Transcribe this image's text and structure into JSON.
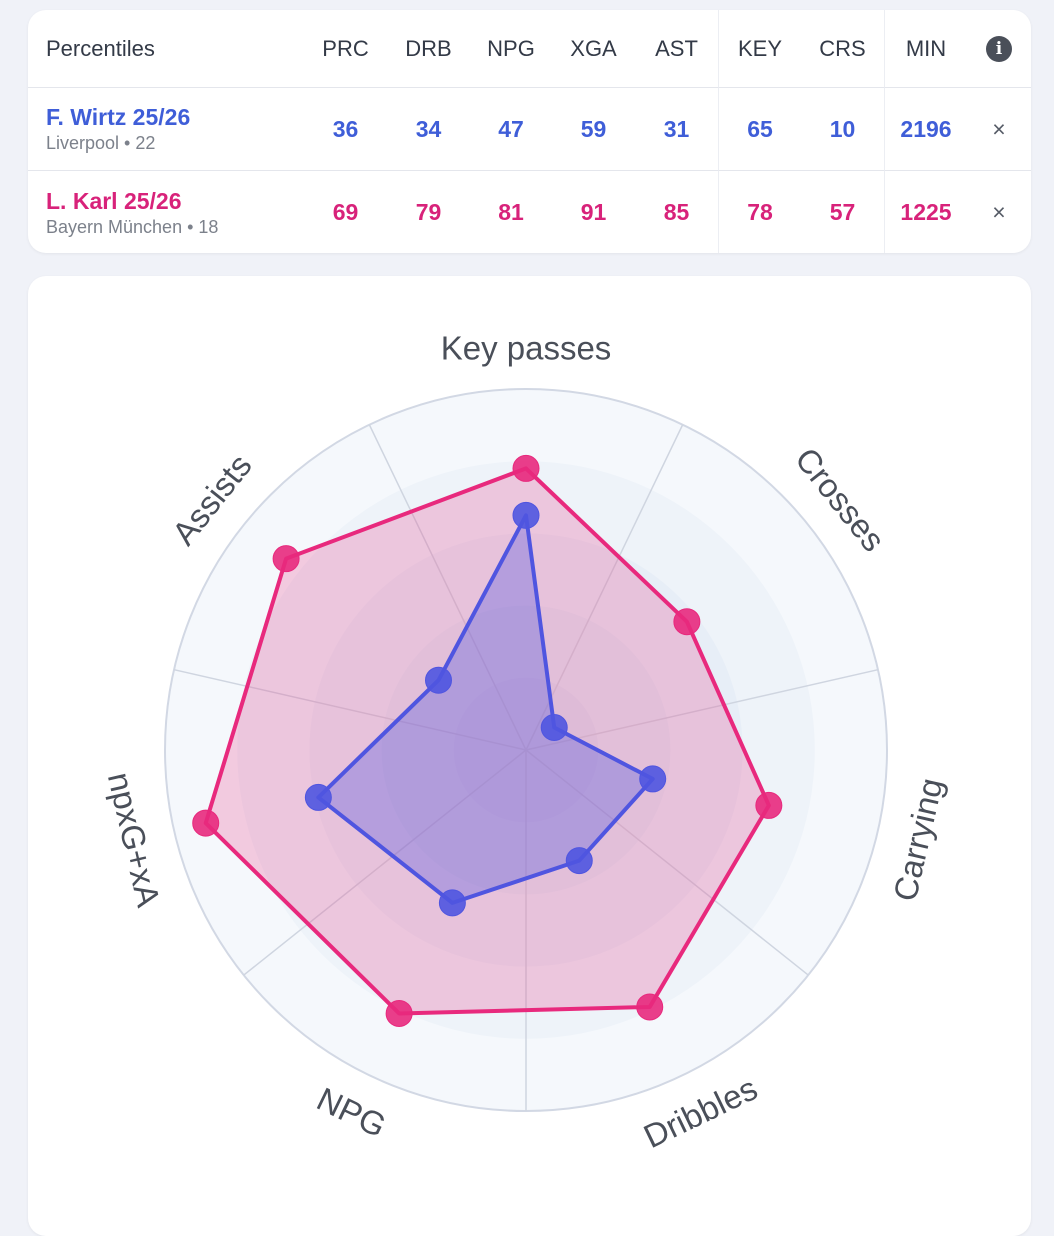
{
  "table": {
    "header": [
      "Percentiles",
      "PRC",
      "DRB",
      "NPG",
      "XGA",
      "AST",
      "KEY",
      "CRS",
      "MIN"
    ],
    "info_icon": "info-icon",
    "players": [
      {
        "name": "F. Wirtz 25/26",
        "sub": "Liverpool • 22",
        "color": "#3f5ed8",
        "values": [
          "36",
          "34",
          "47",
          "59",
          "31",
          "65",
          "10",
          "2196"
        ],
        "close": "×"
      },
      {
        "name": "L. Karl 25/26",
        "sub": "Bayern München • 18",
        "color": "#d8227a",
        "values": [
          "69",
          "79",
          "81",
          "91",
          "85",
          "78",
          "57",
          "1225"
        ],
        "close": "×"
      }
    ]
  },
  "chart_data": {
    "type": "radar",
    "axes": [
      "Key passes",
      "Crosses",
      "Carrying",
      "Dribbles",
      "NPG",
      "npxG+xA",
      "Assists"
    ],
    "range": [
      0,
      100
    ],
    "series": [
      {
        "name": "L. Karl 25/26",
        "color": "#e8297d",
        "values": [
          78,
          57,
          69,
          79,
          81,
          91,
          85
        ]
      },
      {
        "name": "F. Wirtz 25/26",
        "color": "#4f55e0",
        "values": [
          65,
          10,
          36,
          34,
          47,
          59,
          31
        ]
      }
    ]
  }
}
